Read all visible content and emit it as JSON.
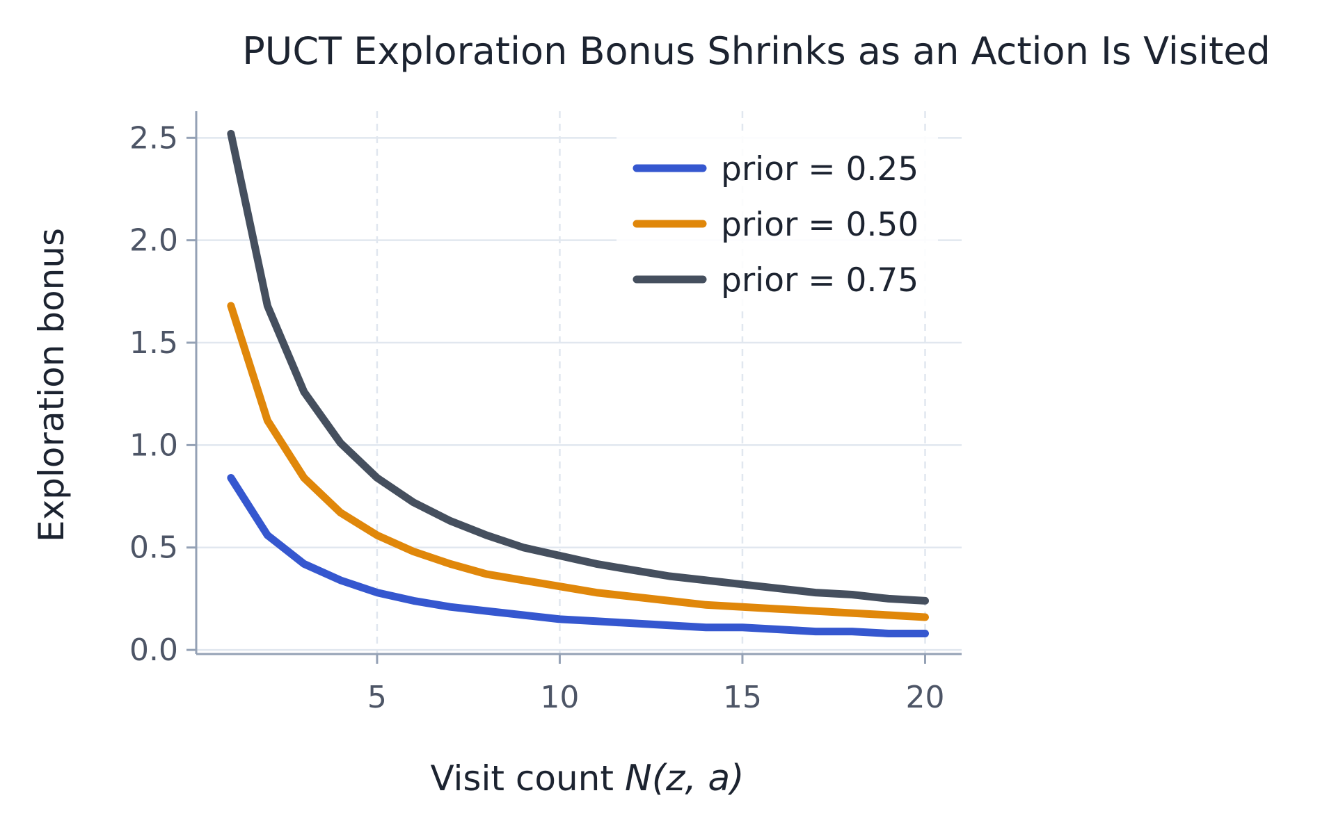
{
  "chart_data": {
    "type": "line",
    "title": "PUCT Exploration Bonus Shrinks as an Action Is Visited",
    "xlabel": {
      "prefix": "Visit count ",
      "math": "N(z, a)"
    },
    "ylabel": "Exploration bonus",
    "xlim": [
      0.05,
      21
    ],
    "ylim": [
      -0.02,
      2.63
    ],
    "xticks": [
      {
        "value": 5,
        "label": "5"
      },
      {
        "value": 10,
        "label": "10"
      },
      {
        "value": 15,
        "label": "15"
      },
      {
        "value": 20,
        "label": "20"
      }
    ],
    "yticks": [
      {
        "value": 0,
        "label": "0.0"
      },
      {
        "value": 0.5,
        "label": "0.5"
      },
      {
        "value": 1,
        "label": "1.0"
      },
      {
        "value": 1.5,
        "label": "1.5"
      },
      {
        "value": 2,
        "label": "2.0"
      },
      {
        "value": 2.5,
        "label": "2.5"
      }
    ],
    "grid": true,
    "legend_position": "top-right",
    "x": [
      1,
      2,
      3,
      4,
      5,
      6,
      7,
      8,
      9,
      10,
      11,
      12,
      13,
      14,
      15,
      16,
      17,
      18,
      19,
      20
    ],
    "series": [
      {
        "name": "prior = 0.25",
        "color": "#3557cf",
        "values": [
          0.84,
          0.56,
          0.42,
          0.34,
          0.28,
          0.24,
          0.21,
          0.19,
          0.17,
          0.15,
          0.14,
          0.13,
          0.12,
          0.11,
          0.11,
          0.1,
          0.09,
          0.09,
          0.08,
          0.08
        ]
      },
      {
        "name": "prior = 0.50",
        "color": "#e0870a",
        "values": [
          1.68,
          1.12,
          0.84,
          0.67,
          0.56,
          0.48,
          0.42,
          0.37,
          0.34,
          0.31,
          0.28,
          0.26,
          0.24,
          0.22,
          0.21,
          0.2,
          0.19,
          0.18,
          0.17,
          0.16
        ]
      },
      {
        "name": "prior = 0.75",
        "color": "#454f5e",
        "values": [
          2.52,
          1.68,
          1.26,
          1.01,
          0.84,
          0.72,
          0.63,
          0.56,
          0.5,
          0.46,
          0.42,
          0.39,
          0.36,
          0.34,
          0.32,
          0.3,
          0.28,
          0.27,
          0.25,
          0.24
        ]
      }
    ],
    "colors": {
      "grid": "#e1e7ef",
      "axis": "#94a1b5",
      "tick_text": "#4d5566",
      "text": "#1c2330"
    }
  }
}
